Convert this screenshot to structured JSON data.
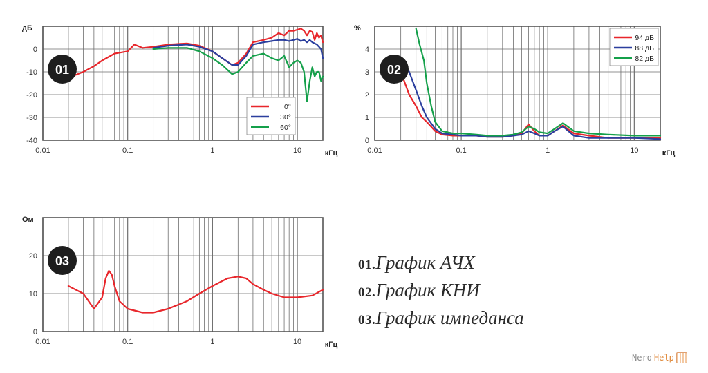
{
  "charts": [
    {
      "badge": "01",
      "y_unit": "дБ",
      "x_unit": "кГц",
      "legend": true,
      "legend_position": "bottom-right",
      "legend_entries": [
        "0°",
        "30°",
        "60°"
      ],
      "colors": {
        "0°": "#e8262b",
        "30°": "#2b3f9e",
        "60°": "#14a04a"
      }
    },
    {
      "badge": "02",
      "y_unit": "%",
      "x_unit": "кГц",
      "legend": true,
      "legend_position": "top-right",
      "legend_entries": [
        "94 дБ",
        "88 дБ",
        "82 дБ"
      ],
      "colors": {
        "94 дБ": "#e8262b",
        "88 дБ": "#2b3f9e",
        "82 дБ": "#14a04a"
      }
    },
    {
      "badge": "03",
      "y_unit": "Ом",
      "x_unit": "кГц",
      "legend": false,
      "colors": {
        "line": "#e8262b"
      }
    }
  ],
  "captions": [
    {
      "num": "01.",
      "text": "График АЧХ"
    },
    {
      "num": "02.",
      "text": "График КНИ"
    },
    {
      "num": "03.",
      "text": "График импеданса"
    }
  ],
  "watermark": {
    "part1": "Nero",
    "part2": "Help"
  },
  "chart_data": [
    {
      "type": "line",
      "x_scale": "log",
      "xlim": [
        0.01,
        20
      ],
      "ylim": [
        -40,
        10
      ],
      "x_ticks": [
        "0.01",
        "0.1",
        "1",
        "10"
      ],
      "y_ticks": [
        "0",
        "-10",
        "-20",
        "-30",
        "-40"
      ],
      "grid": true,
      "series": [
        {
          "name": "0°",
          "x": [
            0.022,
            0.03,
            0.04,
            0.05,
            0.07,
            0.1,
            0.12,
            0.15,
            0.2
          ],
          "y": [
            -12,
            -10,
            -7.5,
            -5,
            -2,
            -1,
            2,
            0.5,
            1
          ]
        },
        {
          "name": "0°",
          "x": [
            0.2,
            0.3,
            0.5,
            0.7,
            1,
            1.3,
            1.7,
            2,
            2.5,
            3,
            4,
            5,
            6,
            7,
            8,
            9,
            10,
            11,
            12,
            13,
            14,
            15,
            16,
            17,
            18,
            19,
            20
          ],
          "y": [
            1,
            2,
            2.5,
            1.5,
            -1,
            -4,
            -7,
            -6,
            -2,
            3,
            4,
            5,
            7,
            6,
            8,
            8,
            8.5,
            9,
            8,
            6,
            8,
            7.5,
            4,
            7,
            5,
            6,
            3
          ]
        },
        {
          "name": "30°",
          "x": [
            0.2,
            0.3,
            0.5,
            0.7,
            1,
            1.3,
            1.7,
            2,
            2.5,
            3,
            4,
            5,
            6,
            7,
            8,
            9,
            10,
            11,
            12,
            13,
            14,
            15,
            16,
            17,
            18,
            19,
            20
          ],
          "y": [
            0.5,
            1.5,
            2,
            1,
            -1,
            -4,
            -7,
            -7,
            -3,
            2,
            3,
            3.5,
            4,
            4,
            3.5,
            4,
            4.5,
            3.5,
            4,
            3,
            4,
            3,
            2.5,
            2,
            1,
            0,
            -4
          ]
        },
        {
          "name": "60°",
          "x": [
            0.2,
            0.3,
            0.5,
            0.7,
            1,
            1.3,
            1.7,
            2,
            2.5,
            3,
            4,
            5,
            6,
            7,
            8,
            9,
            10,
            11,
            12,
            13,
            14,
            15,
            16,
            17,
            18,
            19,
            20
          ],
          "y": [
            0,
            0.5,
            0.5,
            -1,
            -4,
            -7,
            -11,
            -10,
            -6,
            -3,
            -2,
            -4,
            -5,
            -3,
            -8,
            -6,
            -5,
            -6,
            -10,
            -23,
            -14,
            -8,
            -12,
            -10,
            -10,
            -14,
            -12
          ]
        }
      ]
    },
    {
      "type": "line",
      "x_scale": "log",
      "xlim": [
        0.01,
        20
      ],
      "ylim": [
        0,
        5
      ],
      "x_ticks": [
        "0.01",
        "0.1",
        "1",
        "10"
      ],
      "y_ticks": [
        "0",
        "1",
        "2",
        "3",
        "4"
      ],
      "grid": true,
      "series": [
        {
          "name": "94 дБ",
          "x": [
            0.02,
            0.025,
            0.03,
            0.035,
            0.04,
            0.05,
            0.06,
            0.08,
            0.1,
            0.15,
            0.2,
            0.3,
            0.4,
            0.5,
            0.6,
            0.7,
            0.8,
            1,
            1.2,
            1.5,
            2,
            3,
            5,
            10,
            20
          ],
          "y": [
            3,
            2,
            1.5,
            1,
            0.8,
            0.4,
            0.25,
            0.2,
            0.2,
            0.2,
            0.15,
            0.15,
            0.2,
            0.3,
            0.7,
            0.4,
            0.2,
            0.2,
            0.4,
            0.65,
            0.3,
            0.2,
            0.1,
            0.1,
            0.1
          ]
        },
        {
          "name": "88 дБ",
          "x": [
            0.02,
            0.025,
            0.03,
            0.035,
            0.04,
            0.05,
            0.06,
            0.08,
            0.1,
            0.15,
            0.2,
            0.3,
            0.4,
            0.5,
            0.6,
            0.7,
            0.8,
            1,
            1.2,
            1.5,
            2,
            3,
            5,
            10,
            20
          ],
          "y": [
            3.6,
            3,
            2.2,
            1.5,
            1,
            0.5,
            0.3,
            0.25,
            0.2,
            0.2,
            0.15,
            0.15,
            0.2,
            0.25,
            0.4,
            0.3,
            0.2,
            0.2,
            0.4,
            0.6,
            0.2,
            0.1,
            0.1,
            0.1,
            0.05
          ]
        },
        {
          "name": "82 дБ",
          "x": [
            0.03,
            0.033,
            0.037,
            0.04,
            0.045,
            0.05,
            0.06,
            0.08,
            0.1,
            0.15,
            0.2,
            0.3,
            0.4,
            0.5,
            0.6,
            0.7,
            0.8,
            1,
            1.2,
            1.5,
            2,
            3,
            5,
            10,
            20
          ],
          "y": [
            4.9,
            4.2,
            3.5,
            2.5,
            1.5,
            0.8,
            0.4,
            0.3,
            0.3,
            0.25,
            0.2,
            0.2,
            0.25,
            0.35,
            0.6,
            0.5,
            0.35,
            0.3,
            0.5,
            0.75,
            0.4,
            0.3,
            0.25,
            0.2,
            0.2
          ]
        }
      ]
    },
    {
      "type": "line",
      "x_scale": "log",
      "xlim": [
        0.01,
        20
      ],
      "ylim": [
        0,
        30
      ],
      "x_ticks": [
        "0.01",
        "0.1",
        "1",
        "10"
      ],
      "y_ticks": [
        "0",
        "10",
        "20"
      ],
      "grid": true,
      "series": [
        {
          "name": "",
          "x": [
            0.02,
            0.03,
            0.04,
            0.05,
            0.055,
            0.06,
            0.065,
            0.07,
            0.08,
            0.1,
            0.15,
            0.2,
            0.3,
            0.5,
            0.7,
            1,
            1.5,
            2,
            2.5,
            3,
            4,
            5,
            7,
            10,
            15,
            20
          ],
          "y": [
            12,
            10,
            6,
            9,
            14,
            16,
            15,
            12,
            8,
            6,
            5,
            5,
            6,
            8,
            10,
            12,
            14,
            14.5,
            14,
            12.5,
            11,
            10,
            9,
            9,
            9.5,
            11
          ]
        }
      ]
    }
  ]
}
